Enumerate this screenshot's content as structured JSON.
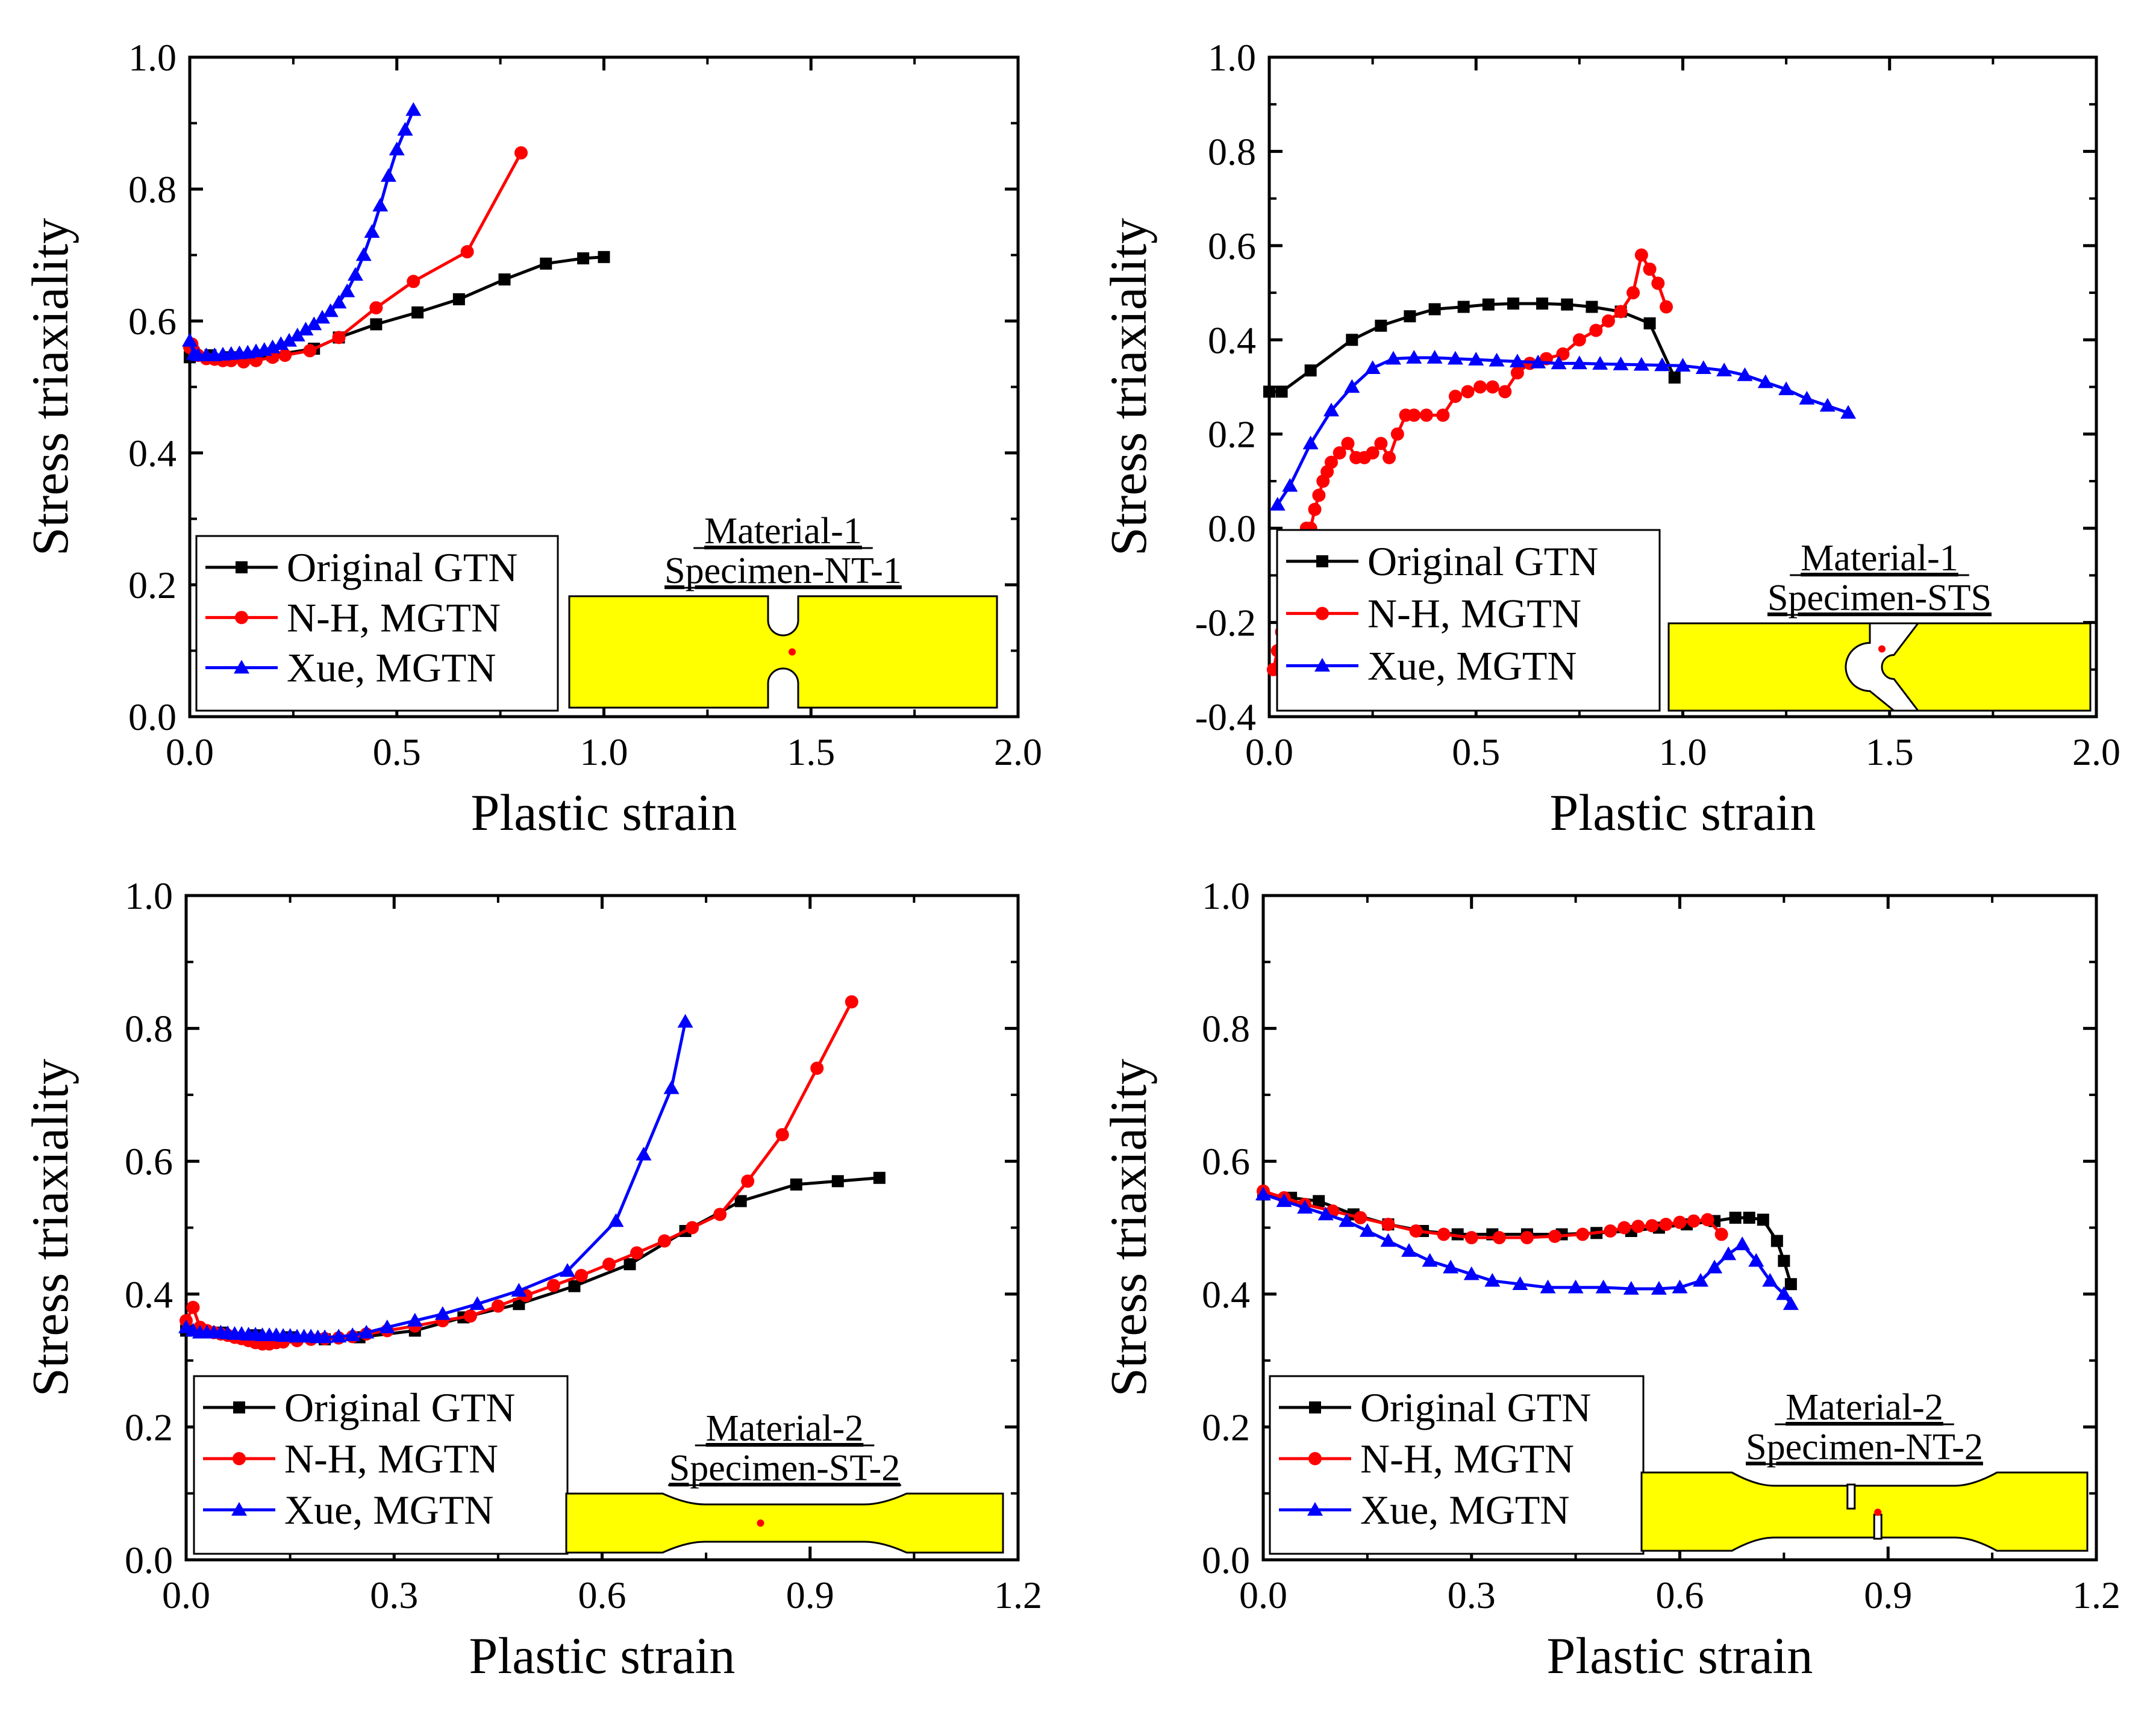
{
  "colors": {
    "black": "#000000",
    "red": "#ff0000",
    "blue": "#0000ff",
    "specimen_fill": "#ffff00"
  },
  "chart_data": [
    {
      "type": "line",
      "xlabel": "Plastic strain",
      "ylabel": "Stress triaxiality",
      "xlim": [
        0.0,
        2.0
      ],
      "ylim": [
        0.0,
        1.0
      ],
      "xticks": [
        "0.0",
        "0.5",
        "1.0",
        "1.5",
        "2.0"
      ],
      "yticks": [
        "0.0",
        "0.2",
        "0.4",
        "0.6",
        "0.8",
        "1.0"
      ],
      "legend_position": "bottom-left",
      "inset": {
        "material": "Material-1",
        "specimen": "Specimen-NT-1",
        "shape": "notched-round"
      },
      "series": [
        {
          "name": "Original GTN",
          "color": "#000000",
          "marker": "square",
          "x": [
            0.0,
            0.05,
            0.1,
            0.15,
            0.2,
            0.3,
            0.36,
            0.45,
            0.55,
            0.65,
            0.76,
            0.86,
            0.95,
            1.0
          ],
          "y": [
            0.545,
            0.548,
            0.545,
            0.544,
            0.548,
            0.558,
            0.575,
            0.595,
            0.613,
            0.633,
            0.663,
            0.687,
            0.695,
            0.697
          ]
        },
        {
          "name": "N-H, MGTN",
          "color": "#ff0000",
          "marker": "circle",
          "x": [
            0.0,
            0.005,
            0.01,
            0.02,
            0.04,
            0.06,
            0.08,
            0.1,
            0.13,
            0.16,
            0.2,
            0.23,
            0.29,
            0.36,
            0.45,
            0.54,
            0.67,
            0.8
          ],
          "y": [
            0.56,
            0.565,
            0.555,
            0.548,
            0.543,
            0.542,
            0.54,
            0.54,
            0.538,
            0.54,
            0.545,
            0.548,
            0.555,
            0.575,
            0.62,
            0.66,
            0.705,
            0.855
          ]
        },
        {
          "name": "Xue, MGTN",
          "color": "#0000ff",
          "marker": "triangle",
          "x": [
            0.0,
            0.01,
            0.02,
            0.04,
            0.06,
            0.08,
            0.1,
            0.12,
            0.14,
            0.16,
            0.18,
            0.2,
            0.22,
            0.24,
            0.26,
            0.28,
            0.3,
            0.32,
            0.34,
            0.36,
            0.38,
            0.4,
            0.42,
            0.44,
            0.46,
            0.48,
            0.5,
            0.52,
            0.54
          ],
          "y": [
            0.57,
            0.55,
            0.548,
            0.548,
            0.548,
            0.549,
            0.55,
            0.551,
            0.552,
            0.554,
            0.556,
            0.56,
            0.565,
            0.57,
            0.578,
            0.587,
            0.595,
            0.605,
            0.615,
            0.628,
            0.645,
            0.67,
            0.7,
            0.735,
            0.775,
            0.82,
            0.86,
            0.89,
            0.92
          ]
        }
      ]
    },
    {
      "type": "line",
      "xlabel": "Plastic strain",
      "ylabel": "Stress triaxiality",
      "xlim": [
        0.0,
        2.0
      ],
      "ylim": [
        -0.4,
        1.0
      ],
      "xticks": [
        "0.0",
        "0.5",
        "1.0",
        "1.5",
        "2.0"
      ],
      "yticks": [
        "-0.4",
        "-0.2",
        "0.0",
        "0.2",
        "0.4",
        "0.6",
        "0.8",
        "1.0"
      ],
      "legend_position": "bottom-left",
      "inset": {
        "material": "Material-1",
        "specimen": "Specimen-STS",
        "shape": "shear"
      },
      "series": [
        {
          "name": "Original GTN",
          "color": "#000000",
          "marker": "square",
          "x": [
            0.0,
            0.03,
            0.1,
            0.2,
            0.27,
            0.34,
            0.4,
            0.47,
            0.53,
            0.59,
            0.66,
            0.72,
            0.78,
            0.85,
            0.92,
            0.98
          ],
          "y": [
            0.29,
            0.29,
            0.335,
            0.4,
            0.43,
            0.45,
            0.465,
            0.47,
            0.475,
            0.477,
            0.477,
            0.475,
            0.47,
            0.46,
            0.435,
            0.32
          ]
        },
        {
          "name": "N-H, MGTN",
          "color": "#ff0000",
          "marker": "circle",
          "x": [
            0.01,
            0.02,
            0.03,
            0.04,
            0.05,
            0.06,
            0.07,
            0.08,
            0.09,
            0.1,
            0.11,
            0.12,
            0.13,
            0.14,
            0.15,
            0.17,
            0.19,
            0.21,
            0.23,
            0.25,
            0.27,
            0.29,
            0.31,
            0.33,
            0.35,
            0.38,
            0.42,
            0.45,
            0.48,
            0.51,
            0.54,
            0.57,
            0.6,
            0.63,
            0.67,
            0.71,
            0.75,
            0.79,
            0.82,
            0.85,
            0.88,
            0.9,
            0.92,
            0.94,
            0.96
          ],
          "y": [
            -0.3,
            -0.26,
            -0.22,
            -0.18,
            -0.14,
            -0.1,
            -0.06,
            -0.03,
            0.0,
            0.0,
            0.04,
            0.07,
            0.1,
            0.12,
            0.14,
            0.16,
            0.18,
            0.15,
            0.15,
            0.16,
            0.18,
            0.15,
            0.2,
            0.24,
            0.24,
            0.24,
            0.24,
            0.28,
            0.29,
            0.3,
            0.3,
            0.29,
            0.33,
            0.35,
            0.36,
            0.37,
            0.4,
            0.42,
            0.44,
            0.46,
            0.5,
            0.58,
            0.55,
            0.52,
            0.47
          ]
        },
        {
          "name": "Xue, MGTN",
          "color": "#0000ff",
          "marker": "triangle",
          "x": [
            0.02,
            0.05,
            0.1,
            0.15,
            0.2,
            0.25,
            0.3,
            0.35,
            0.4,
            0.45,
            0.5,
            0.55,
            0.6,
            0.65,
            0.7,
            0.75,
            0.8,
            0.85,
            0.9,
            0.95,
            1.0,
            1.05,
            1.1,
            1.15,
            1.2,
            1.25,
            1.3,
            1.35,
            1.4
          ],
          "y": [
            0.05,
            0.09,
            0.18,
            0.25,
            0.3,
            0.34,
            0.36,
            0.362,
            0.362,
            0.36,
            0.358,
            0.356,
            0.354,
            0.352,
            0.35,
            0.35,
            0.349,
            0.348,
            0.347,
            0.346,
            0.345,
            0.34,
            0.335,
            0.325,
            0.31,
            0.295,
            0.275,
            0.26,
            0.245
          ]
        }
      ]
    },
    {
      "type": "line",
      "xlabel": "Plastic strain",
      "ylabel": "Stress triaxiality",
      "xlim": [
        0.0,
        1.2
      ],
      "ylim": [
        0.0,
        1.0
      ],
      "xticks": [
        "0.0",
        "0.3",
        "0.6",
        "0.9",
        "1.2"
      ],
      "yticks": [
        "0.0",
        "0.2",
        "0.4",
        "0.6",
        "0.8",
        "1.0"
      ],
      "legend_position": "bottom-left",
      "inset": {
        "material": "Material-2",
        "specimen": "Specimen-ST-2",
        "shape": "smooth"
      },
      "series": [
        {
          "name": "Original GTN",
          "color": "#000000",
          "marker": "square",
          "x": [
            0.0,
            0.02,
            0.05,
            0.1,
            0.15,
            0.2,
            0.25,
            0.33,
            0.4,
            0.48,
            0.56,
            0.64,
            0.72,
            0.8,
            0.88,
            0.94,
            1.0
          ],
          "y": [
            0.345,
            0.345,
            0.342,
            0.338,
            0.335,
            0.332,
            0.335,
            0.345,
            0.365,
            0.385,
            0.412,
            0.445,
            0.495,
            0.54,
            0.565,
            0.57,
            0.575
          ]
        },
        {
          "name": "N-H, MGTN",
          "color": "#ff0000",
          "marker": "circle",
          "x": [
            0.0,
            0.01,
            0.02,
            0.03,
            0.04,
            0.05,
            0.06,
            0.07,
            0.08,
            0.09,
            0.1,
            0.11,
            0.12,
            0.13,
            0.14,
            0.16,
            0.18,
            0.2,
            0.22,
            0.24,
            0.26,
            0.29,
            0.33,
            0.37,
            0.41,
            0.45,
            0.49,
            0.53,
            0.57,
            0.61,
            0.65,
            0.69,
            0.73,
            0.77,
            0.81,
            0.86,
            0.91,
            0.96
          ],
          "y": [
            0.36,
            0.38,
            0.35,
            0.345,
            0.342,
            0.34,
            0.338,
            0.335,
            0.333,
            0.33,
            0.327,
            0.325,
            0.325,
            0.327,
            0.328,
            0.33,
            0.332,
            0.333,
            0.334,
            0.336,
            0.34,
            0.345,
            0.352,
            0.36,
            0.367,
            0.382,
            0.398,
            0.413,
            0.428,
            0.445,
            0.462,
            0.48,
            0.5,
            0.52,
            0.57,
            0.64,
            0.74,
            0.84
          ]
        },
        {
          "name": "Xue, MGTN",
          "color": "#0000ff",
          "marker": "triangle",
          "x": [
            0.0,
            0.01,
            0.02,
            0.03,
            0.04,
            0.05,
            0.06,
            0.07,
            0.08,
            0.09,
            0.1,
            0.11,
            0.12,
            0.13,
            0.14,
            0.15,
            0.16,
            0.17,
            0.18,
            0.19,
            0.2,
            0.22,
            0.24,
            0.26,
            0.29,
            0.33,
            0.37,
            0.42,
            0.48,
            0.55,
            0.62,
            0.66,
            0.7,
            0.72
          ],
          "y": [
            0.35,
            0.345,
            0.342,
            0.342,
            0.342,
            0.342,
            0.341,
            0.34,
            0.34,
            0.339,
            0.339,
            0.338,
            0.338,
            0.338,
            0.337,
            0.337,
            0.336,
            0.336,
            0.336,
            0.335,
            0.335,
            0.336,
            0.338,
            0.342,
            0.35,
            0.36,
            0.37,
            0.385,
            0.405,
            0.435,
            0.51,
            0.61,
            0.71,
            0.81
          ]
        }
      ]
    },
    {
      "type": "line",
      "xlabel": "Plastic strain",
      "ylabel": "Stress triaxiality",
      "xlim": [
        0.0,
        1.2
      ],
      "ylim": [
        0.0,
        1.0
      ],
      "xticks": [
        "0.0",
        "0.3",
        "0.6",
        "0.9",
        "1.2"
      ],
      "yticks": [
        "0.0",
        "0.2",
        "0.4",
        "0.6",
        "0.8",
        "1.0"
      ],
      "legend_position": "bottom-left",
      "inset": {
        "material": "Material-2",
        "specimen": "Specimen-NT-2",
        "shape": "notched-flat"
      },
      "series": [
        {
          "name": "Original GTN",
          "color": "#000000",
          "marker": "square",
          "x": [
            0.0,
            0.04,
            0.08,
            0.13,
            0.18,
            0.23,
            0.28,
            0.33,
            0.38,
            0.43,
            0.48,
            0.53,
            0.57,
            0.61,
            0.65,
            0.68,
            0.7,
            0.72,
            0.74,
            0.75,
            0.76
          ],
          "y": [
            0.55,
            0.545,
            0.54,
            0.52,
            0.505,
            0.495,
            0.49,
            0.49,
            0.49,
            0.49,
            0.492,
            0.495,
            0.5,
            0.505,
            0.51,
            0.515,
            0.515,
            0.512,
            0.48,
            0.45,
            0.415
          ]
        },
        {
          "name": "N-H, MGTN",
          "color": "#ff0000",
          "marker": "circle",
          "x": [
            0.0,
            0.03,
            0.06,
            0.1,
            0.14,
            0.18,
            0.22,
            0.26,
            0.3,
            0.34,
            0.38,
            0.42,
            0.46,
            0.5,
            0.52,
            0.54,
            0.56,
            0.58,
            0.6,
            0.62,
            0.64,
            0.66
          ],
          "y": [
            0.555,
            0.545,
            0.535,
            0.525,
            0.515,
            0.505,
            0.495,
            0.49,
            0.485,
            0.485,
            0.485,
            0.487,
            0.49,
            0.495,
            0.5,
            0.502,
            0.503,
            0.505,
            0.508,
            0.51,
            0.512,
            0.49
          ]
        },
        {
          "name": "Xue, MGTN",
          "color": "#0000ff",
          "marker": "triangle",
          "x": [
            0.0,
            0.03,
            0.06,
            0.09,
            0.12,
            0.15,
            0.18,
            0.21,
            0.24,
            0.27,
            0.3,
            0.33,
            0.37,
            0.41,
            0.45,
            0.49,
            0.53,
            0.57,
            0.6,
            0.63,
            0.65,
            0.67,
            0.69,
            0.71,
            0.73,
            0.75,
            0.76
          ],
          "y": [
            0.55,
            0.54,
            0.53,
            0.52,
            0.51,
            0.495,
            0.48,
            0.465,
            0.45,
            0.44,
            0.43,
            0.42,
            0.415,
            0.41,
            0.41,
            0.41,
            0.408,
            0.408,
            0.41,
            0.42,
            0.44,
            0.46,
            0.475,
            0.45,
            0.42,
            0.4,
            0.385
          ]
        }
      ]
    }
  ]
}
